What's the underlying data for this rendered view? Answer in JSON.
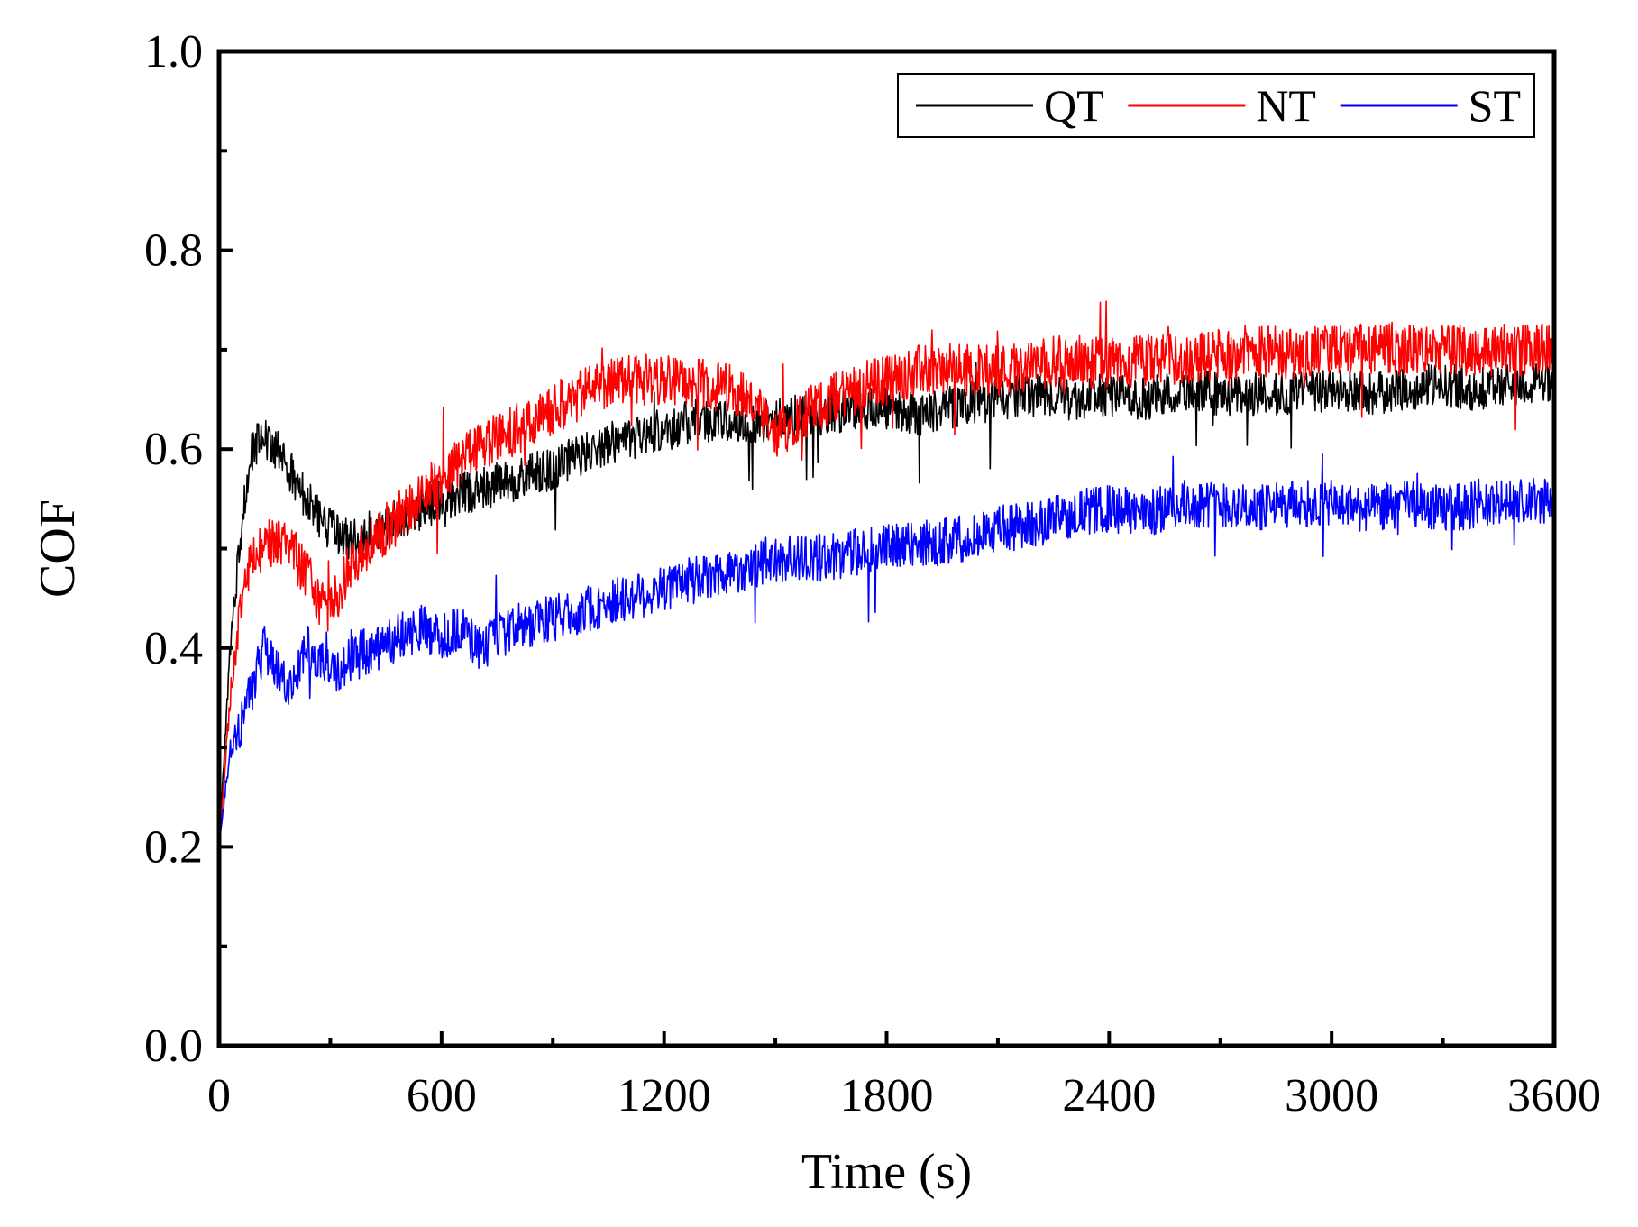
{
  "chart_data": {
    "type": "line",
    "title": "",
    "xlabel": "Time (s)",
    "ylabel": "COF",
    "xlim": [
      0,
      3600
    ],
    "ylim": [
      0,
      1.0
    ],
    "x_ticks": [
      0,
      600,
      1200,
      1800,
      2400,
      3000,
      3600
    ],
    "x_tick_labels": [
      "0",
      "600",
      "1200",
      "1800",
      "2400",
      "3000",
      "3600"
    ],
    "y_ticks": [
      0.0,
      0.2,
      0.4,
      0.6,
      0.8,
      1.0
    ],
    "y_tick_labels": [
      "0.0",
      "0.2",
      "0.4",
      "0.6",
      "0.8",
      "1.0"
    ],
    "grid": false,
    "legend_position": "top-right",
    "series": [
      {
        "name": "QT",
        "color": "#000000",
        "noise": 0.022,
        "x": [
          0,
          30,
          60,
          90,
          120,
          150,
          180,
          210,
          240,
          270,
          300,
          330,
          360,
          420,
          480,
          540,
          600,
          700,
          800,
          900,
          1000,
          1100,
          1200,
          1300,
          1400,
          1500,
          1600,
          1700,
          1800,
          1900,
          2000,
          2100,
          2200,
          2300,
          2400,
          2500,
          2600,
          2700,
          2800,
          2900,
          3000,
          3100,
          3200,
          3300,
          3400,
          3500,
          3600
        ],
        "values": [
          0.2,
          0.4,
          0.52,
          0.6,
          0.61,
          0.6,
          0.59,
          0.56,
          0.55,
          0.53,
          0.52,
          0.51,
          0.51,
          0.52,
          0.53,
          0.54,
          0.55,
          0.56,
          0.57,
          0.58,
          0.6,
          0.61,
          0.62,
          0.63,
          0.625,
          0.63,
          0.635,
          0.64,
          0.64,
          0.635,
          0.645,
          0.65,
          0.655,
          0.65,
          0.655,
          0.65,
          0.66,
          0.655,
          0.655,
          0.655,
          0.66,
          0.655,
          0.66,
          0.665,
          0.66,
          0.665,
          0.665
        ]
      },
      {
        "name": "NT",
        "color": "#ff0000",
        "noise": 0.026,
        "x": [
          0,
          30,
          60,
          90,
          120,
          150,
          180,
          210,
          240,
          270,
          300,
          330,
          360,
          420,
          480,
          540,
          600,
          700,
          800,
          900,
          1000,
          1100,
          1200,
          1300,
          1400,
          1450,
          1500,
          1550,
          1600,
          1700,
          1800,
          1900,
          2000,
          2100,
          2200,
          2300,
          2400,
          2500,
          2600,
          2700,
          2800,
          2900,
          3000,
          3100,
          3200,
          3300,
          3400,
          3500,
          3600
        ],
        "values": [
          0.2,
          0.35,
          0.45,
          0.5,
          0.5,
          0.51,
          0.5,
          0.49,
          0.47,
          0.45,
          0.44,
          0.46,
          0.49,
          0.51,
          0.53,
          0.55,
          0.57,
          0.6,
          0.62,
          0.64,
          0.66,
          0.67,
          0.67,
          0.665,
          0.66,
          0.64,
          0.61,
          0.63,
          0.64,
          0.66,
          0.67,
          0.68,
          0.68,
          0.68,
          0.685,
          0.69,
          0.685,
          0.69,
          0.69,
          0.695,
          0.7,
          0.695,
          0.7,
          0.7,
          0.7,
          0.7,
          0.7,
          0.7,
          0.7
        ]
      },
      {
        "name": "ST",
        "color": "#0000ff",
        "noise": 0.024,
        "x": [
          0,
          30,
          60,
          90,
          120,
          150,
          180,
          210,
          240,
          270,
          300,
          330,
          360,
          420,
          480,
          540,
          600,
          650,
          700,
          750,
          800,
          900,
          1000,
          1100,
          1200,
          1300,
          1400,
          1500,
          1600,
          1700,
          1800,
          1900,
          2000,
          2100,
          2200,
          2300,
          2400,
          2500,
          2600,
          2700,
          2800,
          2900,
          3000,
          3100,
          3200,
          3300,
          3400,
          3500,
          3600
        ],
        "values": [
          0.2,
          0.3,
          0.32,
          0.36,
          0.4,
          0.38,
          0.36,
          0.38,
          0.4,
          0.39,
          0.38,
          0.38,
          0.39,
          0.4,
          0.41,
          0.42,
          0.41,
          0.42,
          0.4,
          0.41,
          0.42,
          0.43,
          0.44,
          0.45,
          0.46,
          0.47,
          0.48,
          0.49,
          0.49,
          0.495,
          0.5,
          0.505,
          0.51,
          0.52,
          0.525,
          0.535,
          0.54,
          0.535,
          0.545,
          0.545,
          0.54,
          0.545,
          0.545,
          0.54,
          0.545,
          0.54,
          0.545,
          0.545,
          0.55
        ]
      }
    ]
  }
}
